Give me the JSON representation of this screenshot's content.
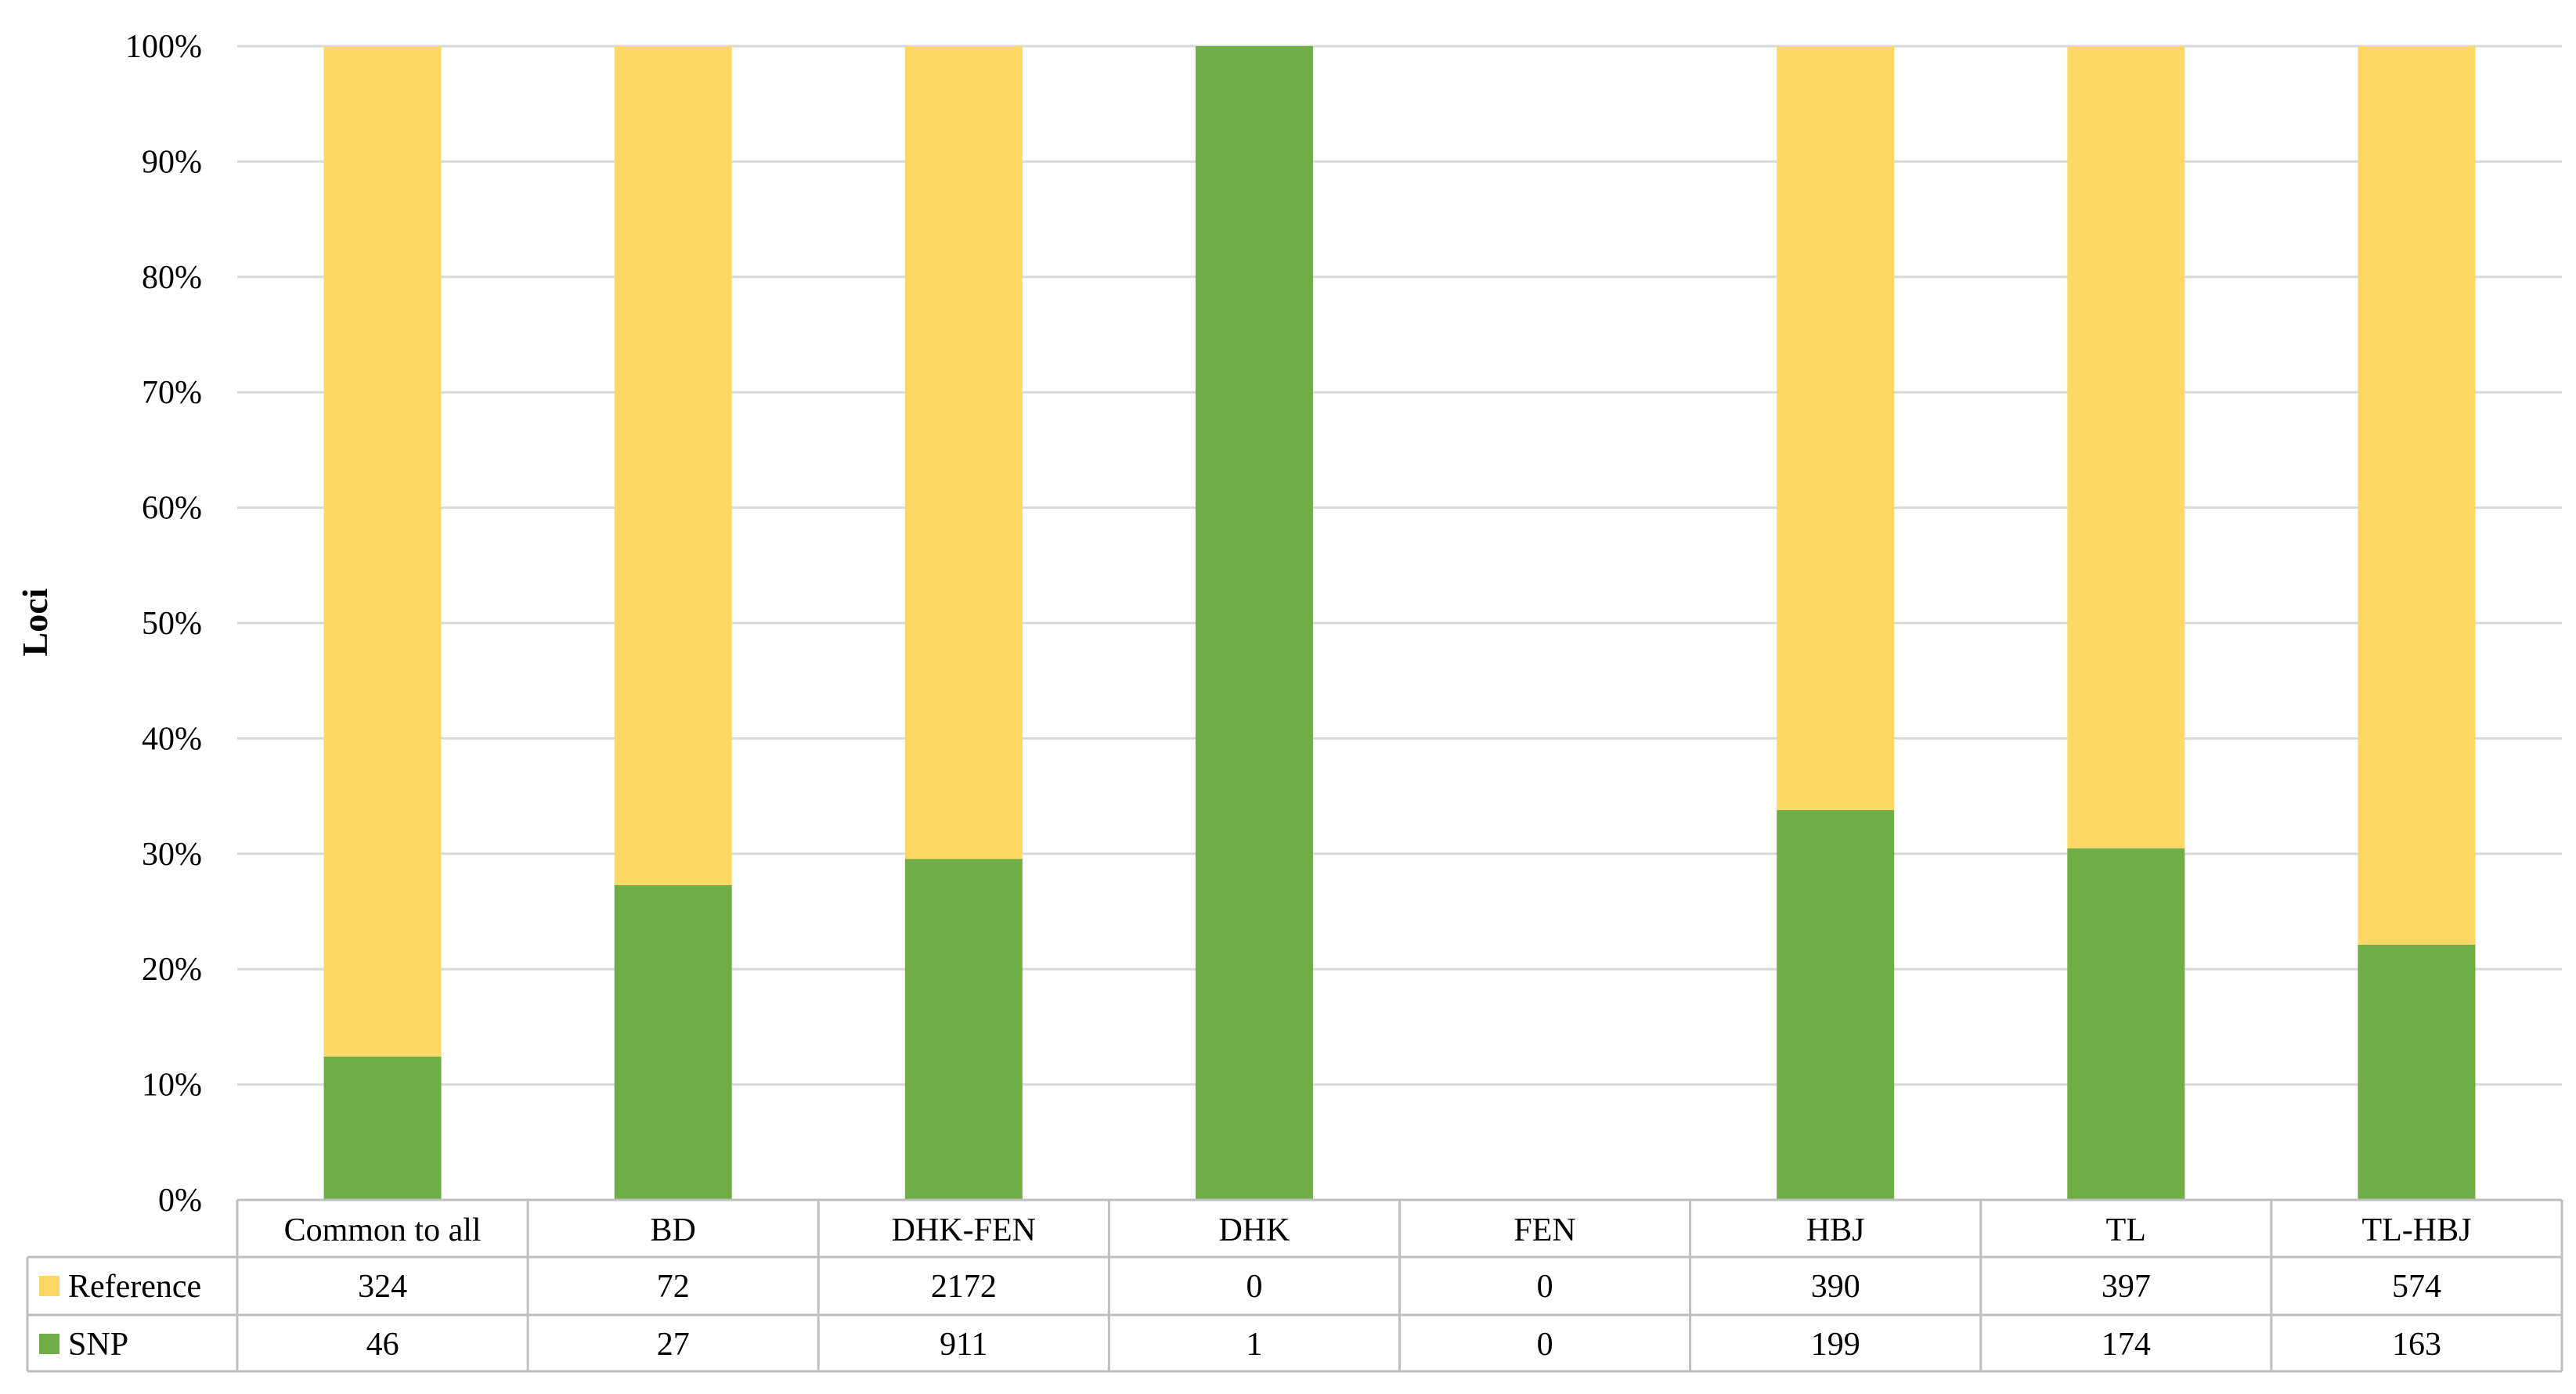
{
  "chart_data": {
    "type": "bar",
    "stacked": "percent",
    "ylabel": "Loci",
    "xlabel": "",
    "ylim": [
      0,
      100
    ],
    "y_ticks": [
      "0%",
      "10%",
      "20%",
      "30%",
      "40%",
      "50%",
      "60%",
      "70%",
      "80%",
      "90%",
      "100%"
    ],
    "grid": true,
    "legend": "data-table-left",
    "categories": [
      "Common to all",
      "BD",
      "DHK-FEN",
      "DHK",
      "FEN",
      "HBJ",
      "TL",
      "TL-HBJ"
    ],
    "series": [
      {
        "name": "Reference",
        "color": "#FDD866",
        "values": [
          324,
          72,
          2172,
          0,
          0,
          390,
          397,
          574
        ]
      },
      {
        "name": "SNP",
        "color": "#70AD47",
        "values": [
          46,
          27,
          911,
          1,
          0,
          199,
          174,
          163
        ]
      }
    ]
  }
}
